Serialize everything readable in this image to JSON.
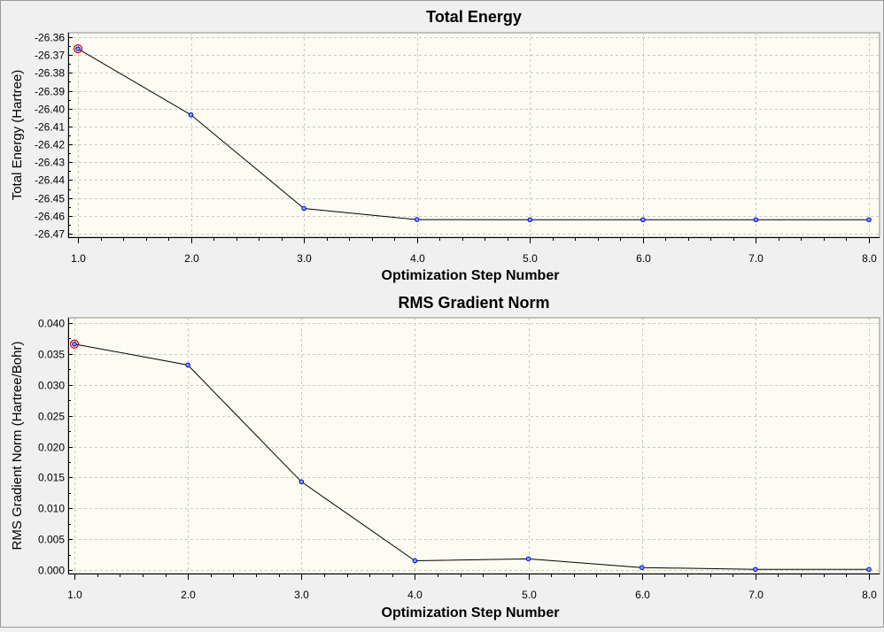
{
  "chart_data": [
    {
      "type": "line",
      "title": "Total Energy",
      "xlabel": "Optimization Step Number",
      "ylabel": "Total Energy (Hartree)",
      "x": [
        1,
        2,
        3,
        4,
        5,
        6,
        7,
        8
      ],
      "values": [
        -26.3665,
        -26.4035,
        -26.4559,
        -26.4621,
        -26.4622,
        -26.4622,
        -26.4622,
        -26.4622
      ],
      "xlim": [
        1,
        8
      ],
      "ylim": [
        -26.473,
        -26.36
      ],
      "x_ticks": [
        1,
        2,
        3,
        4,
        5,
        6,
        7,
        8
      ],
      "x_tick_labels": [
        "1.0",
        "2.0",
        "3.0",
        "4.0",
        "5.0",
        "6.0",
        "7.0",
        "8.0"
      ],
      "y_ticks": [
        -26.36,
        -26.37,
        -26.38,
        -26.39,
        -26.4,
        -26.41,
        -26.42,
        -26.43,
        -26.44,
        -26.45,
        -26.46,
        -26.47
      ],
      "y_tick_labels": [
        "-26.36",
        "-26.37",
        "-26.38",
        "-26.39",
        "-26.40",
        "-26.41",
        "-26.42",
        "-26.43",
        "-26.44",
        "-26.45",
        "-26.46",
        "-26.47"
      ],
      "grid": true,
      "highlight_index": 0
    },
    {
      "type": "line",
      "title": "RMS Gradient Norm",
      "xlabel": "Optimization Step Number",
      "ylabel": "RMS Gradient Norm (Hartree/Bohr)",
      "x": [
        1,
        2,
        3,
        4,
        5,
        6,
        7,
        8
      ],
      "values": [
        0.0366,
        0.0332,
        0.0143,
        0.0015,
        0.0018,
        0.0004,
        0.0001,
        0.0001
      ],
      "xlim": [
        1,
        8
      ],
      "ylim": [
        -0.0008,
        0.0405
      ],
      "x_ticks": [
        1,
        2,
        3,
        4,
        5,
        6,
        7,
        8
      ],
      "x_tick_labels": [
        "1.0",
        "2.0",
        "3.0",
        "4.0",
        "5.0",
        "6.0",
        "7.0",
        "8.0"
      ],
      "y_ticks": [
        0.04,
        0.035,
        0.03,
        0.025,
        0.02,
        0.015,
        0.01,
        0.005,
        0.0
      ],
      "y_tick_labels": [
        "0.040",
        "0.035",
        "0.030",
        "0.025",
        "0.020",
        "0.015",
        "0.010",
        "0.005",
        "0.000"
      ],
      "grid": true,
      "highlight_index": 0
    }
  ],
  "colors": {
    "plot_bg": "#fcfcf2",
    "grid": "#c8c8c8",
    "line": "#000000",
    "point_fill": "#7aa0ff",
    "point_stroke": "#0000cc",
    "highlight": "#c80000"
  }
}
